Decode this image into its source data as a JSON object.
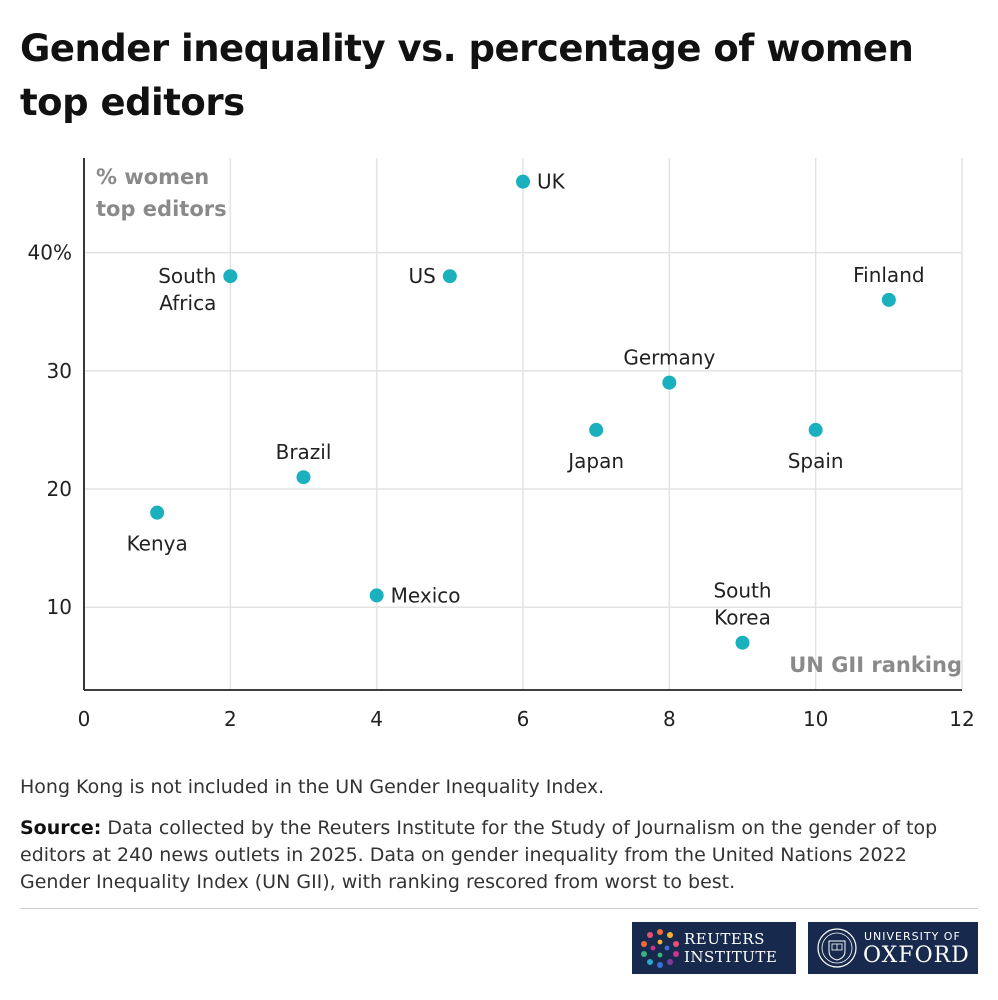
{
  "title": "Gender inequality vs. percentage of women top editors",
  "note": "Hong Kong is not included in the UN Gender Inequality Index.",
  "source": {
    "label": "Source:",
    "text": " Data collected by the Reuters Institute for the Study of Journalism on the gender of top editors at 240 news outlets in 2025. Data on gender inequality from the United Nations 2022 Gender Inequality Index (UN GII), with ranking rescored from worst to best."
  },
  "logos": {
    "reuters_line1": "REUTERS",
    "reuters_line2": "INSTITUTE",
    "oxford_line1": "UNIVERSITY OF",
    "oxford_line2": "OXFORD"
  },
  "chart_data": {
    "type": "scatter",
    "title": "Gender inequality vs. percentage of women top editors",
    "xlabel": "UN GII ranking",
    "ylabel_lines": [
      "% women",
      "top editors"
    ],
    "xlim": [
      0,
      12
    ],
    "ylim": [
      3,
      48
    ],
    "xticks": [
      0,
      2,
      4,
      6,
      8,
      10,
      12
    ],
    "xtick_labels": [
      "0",
      "2",
      "4",
      "6",
      "8",
      "10",
      "12"
    ],
    "yticks": [
      10,
      20,
      30,
      40
    ],
    "ytick_labels": [
      "10",
      "20",
      "30",
      "40%"
    ],
    "grid": true,
    "point_color": "#1ab0bd",
    "points": [
      {
        "label": "Kenya",
        "x": 1,
        "y": 18,
        "pos": "below"
      },
      {
        "label": "South Africa",
        "x": 2,
        "y": 38,
        "pos": "left"
      },
      {
        "label": "Brazil",
        "x": 3,
        "y": 21,
        "pos": "above"
      },
      {
        "label": "Mexico",
        "x": 4,
        "y": 11,
        "pos": "right"
      },
      {
        "label": "US",
        "x": 5,
        "y": 38,
        "pos": "left"
      },
      {
        "label": "UK",
        "x": 6,
        "y": 46,
        "pos": "right"
      },
      {
        "label": "Japan",
        "x": 7,
        "y": 25,
        "pos": "below"
      },
      {
        "label": "Germany",
        "x": 8,
        "y": 29,
        "pos": "above"
      },
      {
        "label": "South Korea",
        "x": 9,
        "y": 7,
        "pos": "above"
      },
      {
        "label": "Spain",
        "x": 10,
        "y": 25,
        "pos": "below"
      },
      {
        "label": "Finland",
        "x": 11,
        "y": 36,
        "pos": "above"
      }
    ]
  }
}
